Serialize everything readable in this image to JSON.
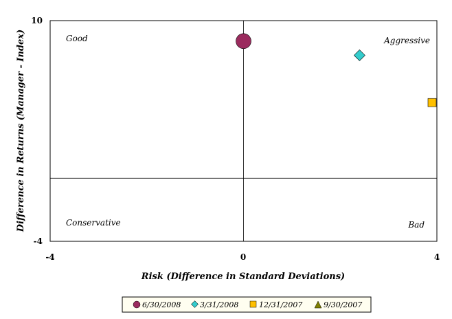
{
  "chart_data": {
    "type": "scatter",
    "title": "",
    "xlabel": "Risk (Difference in Standard Deviations)",
    "ylabel": "Difference in Returns (Manager - Index)",
    "xlim": [
      -4,
      4
    ],
    "ylim": [
      -4,
      10
    ],
    "x_ticks": [
      "-4",
      "0",
      "4"
    ],
    "y_ticks": [
      "10",
      "-4"
    ],
    "grid": false,
    "reference_lines": {
      "x": 0,
      "y": 0
    },
    "quadrant_labels": {
      "top_left": "Good",
      "top_right": "Aggressive",
      "bottom_left": "Conservative",
      "bottom_right": "Bad"
    },
    "legend_position": "bottom-center",
    "series": [
      {
        "name": "6/30/2008",
        "marker": "circle",
        "color": "#9b2b5e",
        "x": 0.0,
        "y": 8.7
      },
      {
        "name": "3/31/2008",
        "marker": "diamond",
        "color": "#33cccc",
        "x": 2.4,
        "y": 7.8
      },
      {
        "name": "12/31/2007",
        "marker": "square",
        "color": "#ffc000",
        "x": 4.0,
        "y": 4.8
      },
      {
        "name": "9/30/2007",
        "marker": "triangle",
        "color": "#808000",
        "x": null,
        "y": null
      }
    ]
  }
}
